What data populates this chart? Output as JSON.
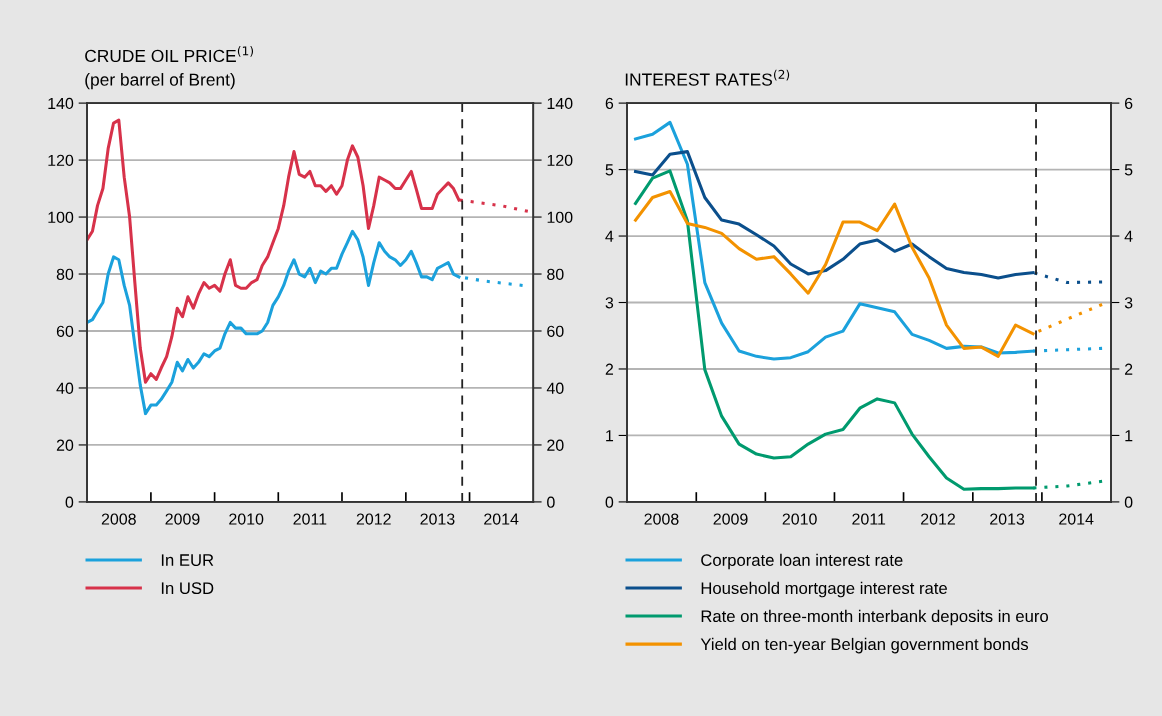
{
  "chart_data": [
    {
      "type": "line",
      "title": "CRUDE OIL PRICE$^{(1)}$",
      "subtitle": "(per barrel of Brent)",
      "line_style": "solid",
      "grid": "y",
      "legend": "bottom",
      "x": [
        "2008-01",
        "2008-02",
        "2008-03",
        "2008-04",
        "2008-05",
        "2008-06",
        "2008-07",
        "2008-08",
        "2008-09",
        "2008-10",
        "2008-11",
        "2008-12",
        "2009-01",
        "2009-02",
        "2009-03",
        "2009-04",
        "2009-05",
        "2009-06",
        "2009-07",
        "2009-08",
        "2009-09",
        "2009-10",
        "2009-11",
        "2009-12",
        "2010-01",
        "2010-02",
        "2010-03",
        "2010-04",
        "2010-05",
        "2010-06",
        "2010-07",
        "2010-08",
        "2010-09",
        "2010-10",
        "2010-11",
        "2010-12",
        "2011-01",
        "2011-02",
        "2011-03",
        "2011-04",
        "2011-05",
        "2011-06",
        "2011-07",
        "2011-08",
        "2011-09",
        "2011-10",
        "2011-11",
        "2011-12",
        "2012-01",
        "2012-02",
        "2012-03",
        "2012-04",
        "2012-05",
        "2012-06",
        "2012-07",
        "2012-08",
        "2012-09",
        "2012-10",
        "2012-11",
        "2012-12",
        "2013-01",
        "2013-02",
        "2013-03",
        "2013-04",
        "2013-05",
        "2013-06",
        "2013-07",
        "2013-08",
        "2013-09",
        "2013-10",
        "2013-11"
      ],
      "series": [
        {
          "name": "In EUR",
          "color": "#1ba1dc",
          "values": [
            63,
            64,
            67,
            70,
            80,
            86,
            85,
            76,
            69,
            55,
            41,
            31,
            34,
            34,
            36,
            39,
            42,
            49,
            46,
            50,
            47,
            49,
            52,
            51,
            53,
            54,
            59,
            63,
            61,
            61,
            59,
            59,
            59,
            60,
            63,
            69,
            72,
            76,
            81,
            85,
            80,
            79,
            82,
            77,
            81,
            80,
            82,
            82,
            87,
            91,
            95,
            92,
            86,
            76,
            84,
            91,
            88,
            86,
            85,
            83,
            85,
            88,
            84,
            79,
            79,
            78,
            82,
            83,
            84,
            80,
            79
          ]
        },
        {
          "name": "In USD",
          "color": "#d7324a",
          "values": [
            92,
            95,
            104,
            110,
            124,
            133,
            134,
            114,
            100,
            77,
            54,
            42,
            45,
            43,
            47,
            51,
            58,
            68,
            65,
            72,
            68,
            73,
            77,
            75,
            76,
            74,
            80,
            85,
            76,
            75,
            75,
            77,
            78,
            83,
            86,
            91,
            96,
            104,
            114,
            123,
            115,
            114,
            116,
            111,
            111,
            109,
            111,
            108,
            111,
            120,
            125,
            121,
            111,
            96,
            104,
            114,
            113,
            112,
            110,
            110,
            113,
            116,
            110,
            103,
            103,
            103,
            108,
            110,
            112,
            110,
            106
          ]
        },
        {
          "color": "#1ba1dc",
          "line_style": "dotted",
          "x": [
            "2013-11",
            "2014-04",
            "2014-11"
          ],
          "values": [
            79,
            77.5,
            76
          ]
        },
        {
          "color": "#d7324a",
          "line_style": "dotted",
          "x": [
            "2013-11",
            "2014-03",
            "2014-07",
            "2014-12"
          ],
          "values": [
            106,
            105,
            104,
            102
          ]
        }
      ],
      "xlim": [
        "2008-01-01",
        "2015-01-01"
      ],
      "xticks": [
        {
          "value": "2008-07-01",
          "label": "2008"
        },
        {
          "value": "2009-07-01",
          "label": "2009"
        },
        {
          "value": "2010-07-01",
          "label": "2010"
        },
        {
          "value": "2011-07-01",
          "label": "2011"
        },
        {
          "value": "2012-07-01",
          "label": "2012"
        },
        {
          "value": "2013-07-01",
          "label": "2013"
        },
        {
          "value": "2014-07-01",
          "label": "2014"
        },
        {
          "value": "2009-01-01",
          "label": null
        },
        {
          "value": "2010-01-01",
          "label": null
        },
        {
          "value": "2011-01-01",
          "label": null
        },
        {
          "value": "2012-01-01",
          "label": null
        },
        {
          "value": "2013-01-01",
          "label": null
        },
        {
          "value": "2014-01-01",
          "label": null
        }
      ],
      "ylim": [
        0,
        140
      ],
      "yticks": [
        0,
        20,
        40,
        60,
        80,
        100,
        120,
        140
      ],
      "y2lim": [
        0,
        140
      ],
      "y2ticks": [
        0,
        20,
        40,
        60,
        80,
        100,
        120,
        140
      ],
      "ref_lines": [
        {
          "axis": "x",
          "value": "2013-11-20",
          "color": "#222222",
          "line_style": "dashed"
        }
      ]
    },
    {
      "type": "line",
      "title": "INTEREST RATES$^{(2)}$",
      "line_style": "solid",
      "grid": "y",
      "legend": "bottom",
      "x": [
        "2008-02-15",
        "2008-05-15",
        "2008-08-15",
        "2008-11-15",
        "2009-02-15",
        "2009-05-15",
        "2009-08-15",
        "2009-11-15",
        "2010-02-15",
        "2010-05-15",
        "2010-08-15",
        "2010-11-15",
        "2011-02-15",
        "2011-05-15",
        "2011-08-15",
        "2011-11-15",
        "2012-02-15",
        "2012-05-15",
        "2012-08-15",
        "2012-11-15",
        "2013-02-15",
        "2013-05-15",
        "2013-08-15",
        "2013-11-15"
      ],
      "series": [
        {
          "name": "Corporate loan interest rate",
          "color": "#1ba1dc",
          "values": [
            5.46,
            5.53,
            5.71,
            5.08,
            3.3,
            2.69,
            2.27,
            2.19,
            2.15,
            2.17,
            2.26,
            2.48,
            2.57,
            2.98,
            2.92,
            2.86,
            2.52,
            2.43,
            2.31,
            2.34,
            2.33,
            2.24,
            2.25,
            2.27
          ]
        },
        {
          "name": "Household mortgage interest rate",
          "color": "#0b4f8c",
          "values": [
            4.97,
            4.92,
            5.23,
            5.27,
            4.58,
            4.24,
            4.18,
            4.02,
            3.85,
            3.58,
            3.43,
            3.48,
            3.65,
            3.88,
            3.94,
            3.77,
            3.88,
            3.69,
            3.51,
            3.45,
            3.42,
            3.37,
            3.42,
            3.45
          ]
        },
        {
          "name": "Rate on three-month interbank deposits in euro",
          "color": "#009a6e",
          "values": [
            4.49,
            4.87,
            4.98,
            4.23,
            1.99,
            1.29,
            0.87,
            0.72,
            0.66,
            0.68,
            0.87,
            1.02,
            1.09,
            1.41,
            1.55,
            1.49,
            1.02,
            0.68,
            0.36,
            0.19,
            0.2,
            0.2,
            0.21,
            0.21
          ]
        },
        {
          "name": "Yield on ten-year Belgian government bonds",
          "color": "#f39200",
          "values": [
            4.24,
            4.58,
            4.67,
            4.19,
            4.13,
            4.04,
            3.81,
            3.65,
            3.69,
            3.43,
            3.14,
            3.57,
            4.21,
            4.21,
            4.08,
            4.48,
            3.83,
            3.37,
            2.66,
            2.31,
            2.33,
            2.19,
            2.66,
            2.53
          ]
        },
        {
          "color": "#1ba1dc",
          "line_style": "dotted",
          "x": [
            "2013-11-15",
            "2014-05-15",
            "2014-11-15"
          ],
          "values": [
            2.27,
            2.29,
            2.31
          ]
        },
        {
          "color": "#0b4f8c",
          "line_style": "dotted",
          "x": [
            "2013-11-15",
            "2014-05-15",
            "2014-11-15"
          ],
          "values": [
            3.45,
            3.3,
            3.31
          ]
        },
        {
          "color": "#009a6e",
          "line_style": "dotted",
          "x": [
            "2013-11-15",
            "2014-05-15",
            "2014-11-15"
          ],
          "values": [
            0.21,
            0.24,
            0.31
          ]
        },
        {
          "color": "#f39200",
          "line_style": "dotted",
          "x": [
            "2013-11-15",
            "2014-05-15",
            "2014-11-15"
          ],
          "values": [
            2.53,
            2.75,
            2.97
          ]
        }
      ],
      "xlim": [
        "2008-01-01",
        "2015-01-01"
      ],
      "xticks": [
        {
          "value": "2008-07-01",
          "label": "2008"
        },
        {
          "value": "2009-07-01",
          "label": "2009"
        },
        {
          "value": "2010-07-01",
          "label": "2010"
        },
        {
          "value": "2011-07-01",
          "label": "2011"
        },
        {
          "value": "2012-07-01",
          "label": "2012"
        },
        {
          "value": "2013-07-01",
          "label": "2013"
        },
        {
          "value": "2014-07-01",
          "label": "2014"
        },
        {
          "value": "2009-01-01",
          "label": null
        },
        {
          "value": "2010-01-01",
          "label": null
        },
        {
          "value": "2011-01-01",
          "label": null
        },
        {
          "value": "2012-01-01",
          "label": null
        },
        {
          "value": "2013-01-01",
          "label": null
        },
        {
          "value": "2014-01-01",
          "label": null
        }
      ],
      "ylim": [
        0,
        6
      ],
      "yticks": [
        0,
        1,
        2,
        3,
        4,
        5,
        6
      ],
      "y2lim": [
        0,
        6
      ],
      "y2ticks": [
        0,
        1,
        2,
        3,
        4,
        5,
        6
      ],
      "ref_lines": [
        {
          "axis": "x",
          "value": "2013-12-01",
          "color": "#222222",
          "line_style": "dashed"
        }
      ]
    }
  ]
}
